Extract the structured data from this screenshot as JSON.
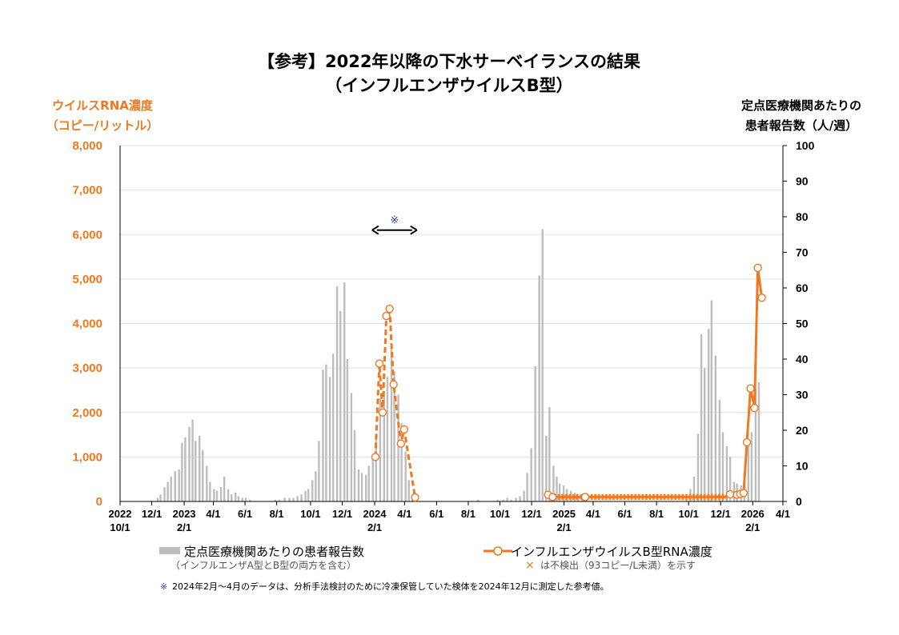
{
  "chart_data": {
    "type": "bar+line",
    "title": "【参考】2022年以降の下水サーベイランスの結果",
    "subtitle": "（インフルエンザウイルスB型）",
    "ylabel_left": [
      "ウイルスRNA濃度",
      "（コピー/リットル）"
    ],
    "ylabel_right": [
      "定点医療機関あたりの",
      "患者報告数（人/週）"
    ],
    "ylim_left": [
      0,
      8000
    ],
    "ylim_right": [
      0,
      100
    ],
    "yticks_left": [
      "0",
      "1,000",
      "2,000",
      "3,000",
      "4,000",
      "5,000",
      "6,000",
      "7,000",
      "8,000"
    ],
    "yticks_right": [
      "0",
      "10",
      "20",
      "30",
      "40",
      "50",
      "60",
      "70",
      "80",
      "90",
      "100"
    ],
    "x_unit": "weeks since 2022-10-01",
    "xlim": [
      0,
      182
    ],
    "xticks": [
      {
        "week": 0,
        "label": "2022",
        "label2": "10/1"
      },
      {
        "week": 8.7,
        "label": "12/1",
        "label2": ""
      },
      {
        "week": 17.6,
        "label": "2023",
        "label2": "2/1"
      },
      {
        "week": 25.6,
        "label": "4/1",
        "label2": ""
      },
      {
        "week": 34.3,
        "label": "6/1",
        "label2": ""
      },
      {
        "week": 43,
        "label": "8/1",
        "label2": ""
      },
      {
        "week": 52.3,
        "label": "10/1",
        "label2": ""
      },
      {
        "week": 61,
        "label": "12/1",
        "label2": ""
      },
      {
        "week": 69.9,
        "label": "2024",
        "label2": "2/1"
      },
      {
        "week": 78.1,
        "label": "4/1",
        "label2": ""
      },
      {
        "week": 86.9,
        "label": "6/1",
        "label2": ""
      },
      {
        "week": 95.6,
        "label": "8/1",
        "label2": ""
      },
      {
        "week": 104.3,
        "label": "10/1",
        "label2": ""
      },
      {
        "week": 113,
        "label": "12/1",
        "label2": ""
      },
      {
        "week": 121.9,
        "label": "2025",
        "label2": "2/1"
      },
      {
        "week": 129.9,
        "label": "4/1",
        "label2": ""
      },
      {
        "week": 138.6,
        "label": "6/1",
        "label2": ""
      },
      {
        "week": 147.3,
        "label": "8/1",
        "label2": ""
      },
      {
        "week": 156.1,
        "label": "10/1",
        "label2": ""
      },
      {
        "week": 164.9,
        "label": "12/1",
        "label2": ""
      },
      {
        "week": 173.7,
        "label": "2026",
        "label2": "2/1"
      },
      {
        "week": 182,
        "label": "4/1",
        "label2": ""
      }
    ],
    "bars": {
      "name": "定点医療機関あたりの患者報告数",
      "axis": "right",
      "color": "#bdbdbd",
      "weeks": [
        10.3,
        11.1,
        12.2,
        13.1,
        14,
        15.1,
        16.2,
        17,
        17.9,
        19,
        19.9,
        20.7,
        21.8,
        22.7,
        23.8,
        24.7,
        25.8,
        26.6,
        27.7,
        28.6,
        29.7,
        30.6,
        31.7,
        32.5,
        33.6,
        34.5,
        35.6,
        42.6,
        43.7,
        45.2,
        46.5,
        47.6,
        48.7,
        49.8,
        50.9,
        51.7,
        52.8,
        53.7,
        54.6,
        55.7,
        56.6,
        57.6,
        58.5,
        59.6,
        60.5,
        61.6,
        62.4,
        63.5,
        64.4,
        65.5,
        66.4,
        67.5,
        68.3,
        69.4,
        70.3,
        71.4,
        72.5,
        73.4,
        74.5,
        75.3,
        76.4,
        77.3,
        78.4,
        79.3,
        80.3,
        81.2,
        98.3,
        103.7,
        105.2,
        106.3,
        107.4,
        108.7,
        109.8,
        110.9,
        111.8,
        112.9,
        114,
        115.1,
        116,
        117,
        117.9,
        119,
        119.9,
        120.7,
        121.8,
        122.7,
        123.8,
        124.9,
        125.8,
        126.9,
        128,
        155.5,
        156.6,
        157.6,
        158.7,
        159.6,
        160.5,
        161.6,
        162.4,
        163.5,
        164.6,
        165.5,
        166.6,
        167.5,
        168.6,
        169.4,
        170.5,
        171.4,
        172.5,
        173.4,
        174.5,
        175.4
      ],
      "values": [
        1,
        2,
        4,
        5.5,
        7,
        8.5,
        9,
        16.5,
        18,
        21,
        23,
        17,
        18.5,
        14.5,
        10,
        5.5,
        3.5,
        3,
        4,
        7,
        3.5,
        2,
        2.5,
        1.5,
        1,
        1,
        0.5,
        0.5,
        0.5,
        1,
        1,
        1,
        1.5,
        2,
        3,
        3.5,
        6,
        8.5,
        17,
        37,
        38.5,
        35,
        41.5,
        60.5,
        53.5,
        61.5,
        40,
        30.5,
        20,
        9,
        8,
        7.5,
        10,
        12,
        17.5,
        29,
        31,
        35,
        43,
        36.5,
        30,
        22,
        14,
        6,
        2,
        0.5,
        0.5,
        0.5,
        0.5,
        1,
        0.5,
        1,
        1.5,
        3,
        8,
        15,
        38,
        63.5,
        76.5,
        18.5,
        26.5,
        10,
        7,
        5,
        4.5,
        3.5,
        3,
        2.5,
        1.5,
        1,
        0.5,
        0.5,
        3.5,
        7,
        19,
        47,
        37.5,
        48.5,
        56.5,
        41,
        28.5,
        19.5,
        15.5,
        12.5,
        5.5,
        5,
        4.5,
        8,
        15.5,
        19.5,
        31.5,
        33.5
      ]
    },
    "series": [
      {
        "name": "インフルエンザウイルスB型RNA濃度 (2024年2月～4月, 参考値)",
        "axis": "left",
        "style": "dashed",
        "color": "#f07820",
        "weeks": [
          70.1,
          71.2,
          72.1,
          73.1,
          74,
          75.1,
          77.1,
          78,
          81
        ],
        "values": [
          1000,
          3100,
          2000,
          4170,
          4330,
          2630,
          1300,
          1620,
          90
        ]
      },
      {
        "name": "インフルエンザウイルスB型RNA濃度",
        "axis": "left",
        "style": "solid",
        "color": "#f07820",
        "weeks": [
          117.5,
          118.8,
          120,
          121,
          122,
          123,
          124,
          125,
          126,
          127.7,
          129,
          130,
          131,
          132,
          133,
          134,
          135,
          136,
          137,
          138,
          139,
          140,
          141,
          142,
          143,
          144,
          145,
          146,
          147,
          148,
          149,
          150,
          151,
          152,
          153,
          154,
          155,
          156,
          157,
          158,
          159,
          160,
          161,
          162,
          163,
          164,
          165,
          166,
          167.5,
          169.4,
          170.3,
          171.2,
          172.1,
          173.1,
          174.2,
          175.1,
          176.2
        ],
        "values": [
          150,
          100,
          null,
          null,
          null,
          null,
          null,
          null,
          null,
          100,
          null,
          null,
          null,
          null,
          null,
          null,
          null,
          null,
          null,
          null,
          null,
          null,
          null,
          null,
          null,
          null,
          null,
          null,
          null,
          null,
          null,
          null,
          null,
          null,
          null,
          null,
          null,
          null,
          null,
          null,
          null,
          null,
          null,
          null,
          null,
          null,
          null,
          null,
          160,
          150,
          170,
          190,
          1330,
          2540,
          2100,
          5250,
          4580
        ],
        "not_detected_value": 100
      }
    ],
    "annotation": {
      "symbol": "※",
      "span_weeks": [
        69.2,
        81.5
      ],
      "level": 6100
    },
    "legend": [
      {
        "label": "定点医療機関あたりの患者報告数",
        "sub": "（インフルエンザA型とB型の両方を含む）",
        "kind": "bar"
      },
      {
        "label": "インフルエンザウイルスB型RNA濃度",
        "sub": "は不検出（93コピー/L未満）を示す",
        "sub_symbol": "×",
        "kind": "line"
      }
    ],
    "footnote": {
      "symbol": "※",
      "text": "2024年2月～4月のデータは、分析手法検討のために冷凍保管していた検体を2024年12月に測定した参考値。"
    }
  }
}
